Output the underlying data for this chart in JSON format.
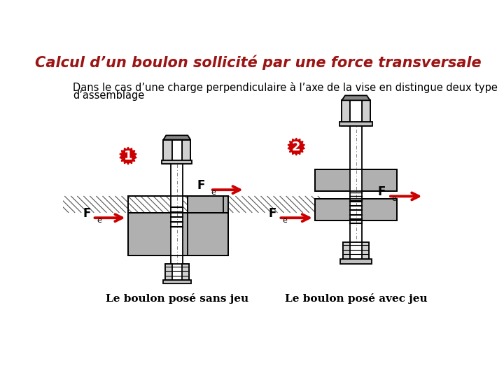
{
  "title": "Calcul d’un boulon sollicité par une force transversale",
  "title_color": "#9B1515",
  "title_fontsize": 15,
  "subtitle_line1": "Dans le cas d’une charge perpendiculaire à l’axe de la vise en distingue deux type",
  "subtitle_line2": "d’assemblage",
  "subtitle_fontsize": 10.5,
  "label1": "1",
  "label2": "2",
  "label_color": "#cc0000",
  "Fe_label": "F",
  "Fe_sub": "e",
  "caption1": "Le boulon posé sans jeu",
  "caption2": "Le boulon posé avec jeu",
  "bg_color": "#ffffff",
  "text_color": "#000000",
  "arrow_color": "#cc0000",
  "hatch_color": "#555555",
  "gray_fill": "#c8c8c8",
  "dark_fill": "#888888"
}
